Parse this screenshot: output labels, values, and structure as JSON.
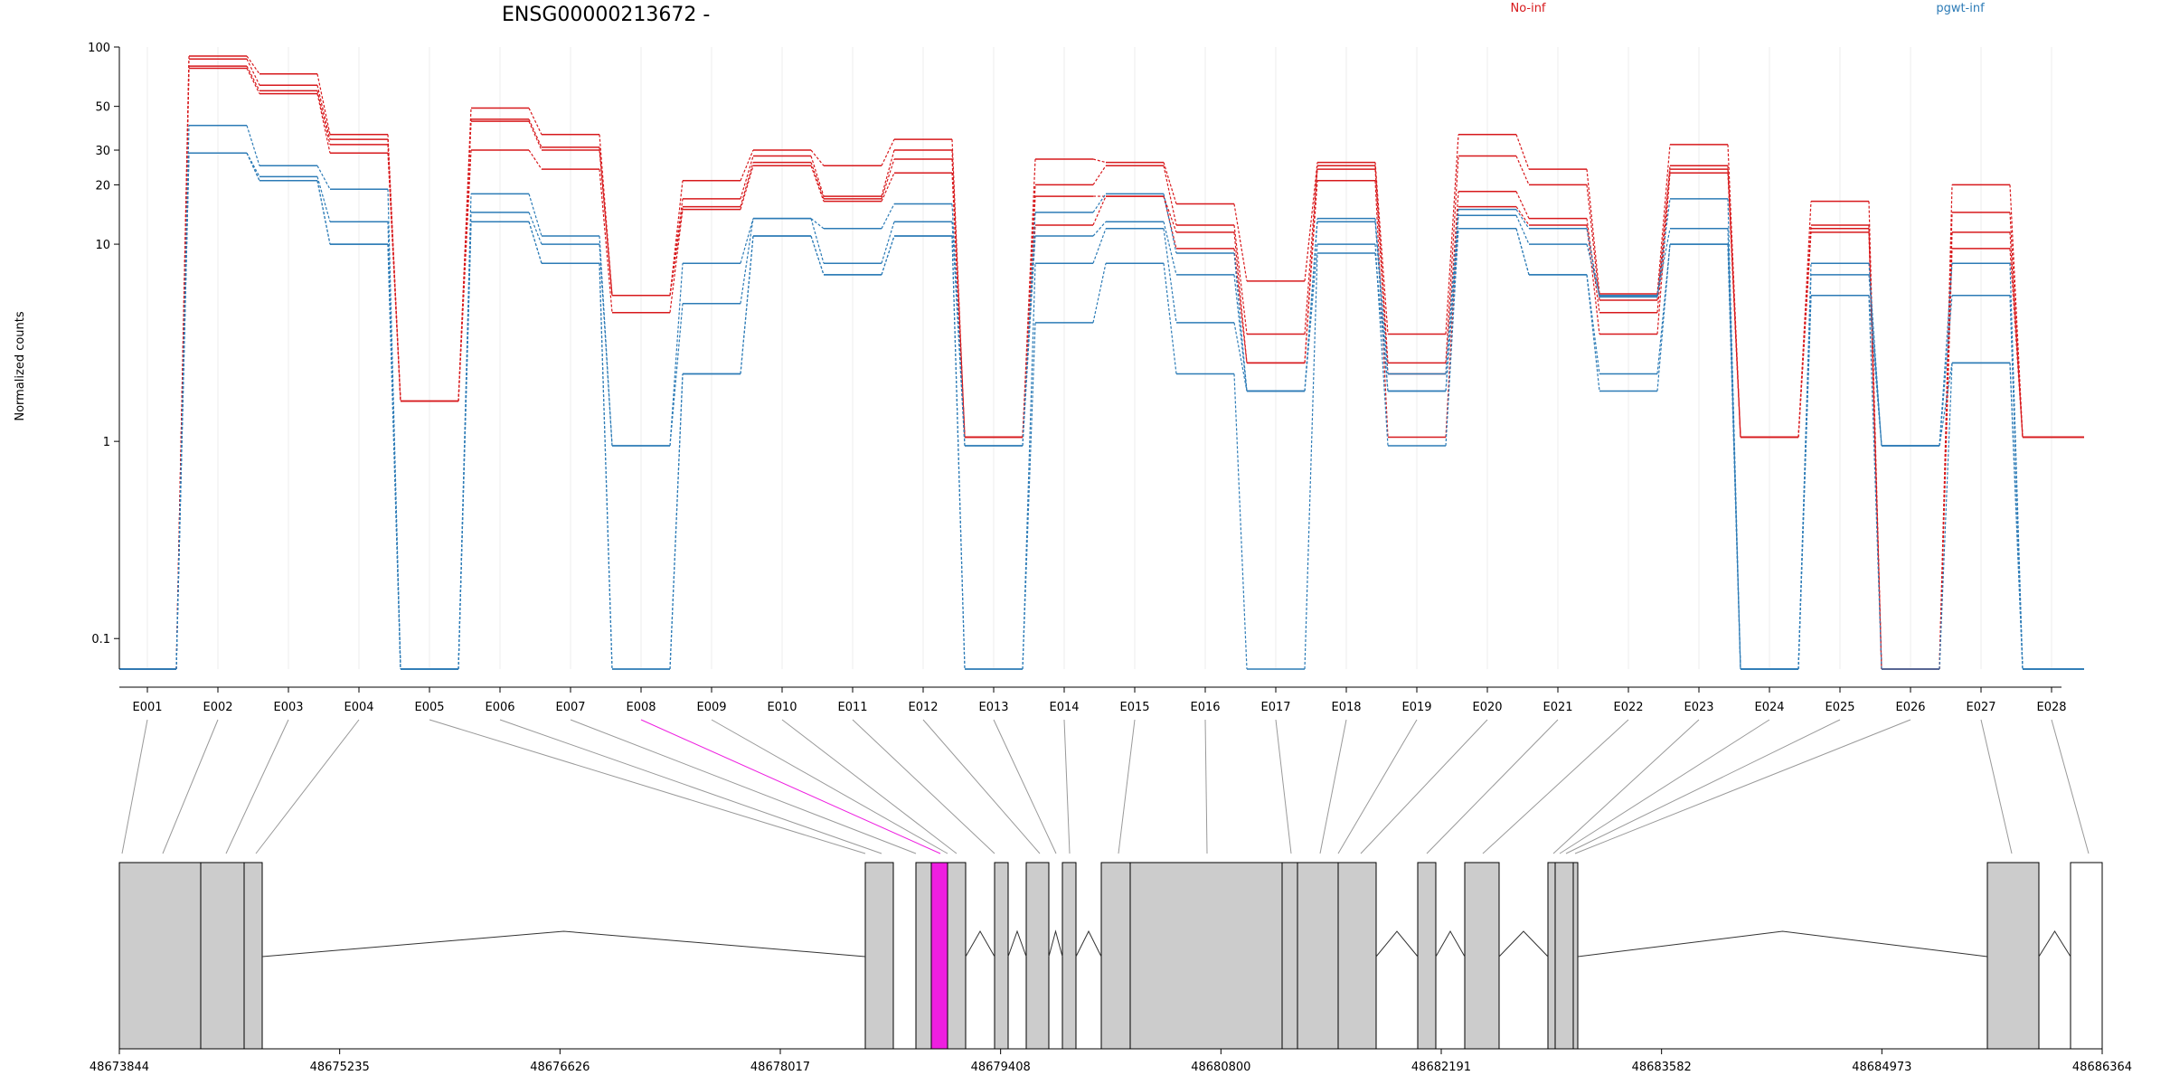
{
  "chart_data": {
    "type": "line",
    "title": "ENSG00000213672 -",
    "ylabel": "Normalized counts",
    "yscale": "log",
    "ylim": [
      0.07,
      100
    ],
    "y_ticks": [
      0.1,
      1,
      10,
      20,
      30,
      50,
      100
    ],
    "y_tick_labels": [
      "0.1",
      "1",
      "10",
      "20",
      "30",
      "50",
      "100"
    ],
    "categories": [
      "E001",
      "E002",
      "E003",
      "E004",
      "E005",
      "E006",
      "E007",
      "E008",
      "E009",
      "E010",
      "E011",
      "E012",
      "E013",
      "E014",
      "E015",
      "E016",
      "E017",
      "E018",
      "E019",
      "E020",
      "E021",
      "E022",
      "E023",
      "E024",
      "E025",
      "E026",
      "E027",
      "E028"
    ],
    "legend": [
      {
        "label": "No-inf",
        "color": "#d7191c"
      },
      {
        "label": "pgwt-inf",
        "color": "#2c7bb6"
      }
    ],
    "series": [
      {
        "group": "No-inf",
        "values": [
          0.07,
          90,
          73,
          36,
          1.6,
          49,
          36,
          5.5,
          21,
          30,
          25,
          34,
          1.05,
          27,
          26,
          16,
          6.5,
          26,
          3.5,
          36,
          24,
          5.6,
          32,
          1.05,
          16.5,
          0.07,
          20,
          1.05
        ]
      },
      {
        "group": "No-inf",
        "values": [
          0.07,
          87,
          64,
          34,
          1.6,
          43,
          31,
          5.5,
          17,
          28,
          17.5,
          30,
          1.05,
          20,
          25,
          12.5,
          3.5,
          25,
          2.5,
          28,
          20,
          5.2,
          25,
          1.05,
          12.5,
          0.07,
          14.5,
          1.05
        ]
      },
      {
        "group": "No-inf",
        "values": [
          0.07,
          80,
          60,
          32,
          1.6,
          42,
          30,
          5.5,
          15.5,
          26,
          17,
          27,
          1.05,
          17.5,
          17.5,
          11.5,
          2.5,
          24,
          2.2,
          18.5,
          13.5,
          4.5,
          24,
          1.05,
          12,
          0.07,
          11.5,
          1.05
        ]
      },
      {
        "group": "No-inf",
        "values": [
          0.07,
          78,
          58,
          29,
          1.6,
          30,
          24,
          4.5,
          15,
          25,
          16.5,
          23,
          1.05,
          12.5,
          17.5,
          9.5,
          2.5,
          21,
          1.05,
          15.5,
          12.5,
          3.5,
          23,
          1.05,
          11.5,
          0.07,
          9.5,
          1.05
        ]
      },
      {
        "group": "pgwt-inf",
        "values": [
          0.07,
          40,
          25,
          19,
          0.07,
          18,
          11,
          0.95,
          8,
          13.5,
          12,
          16,
          0.95,
          14.5,
          18,
          9,
          1.8,
          13.5,
          2.2,
          15,
          12,
          5.4,
          17,
          0.07,
          8,
          0.95,
          8,
          0.07
        ]
      },
      {
        "group": "pgwt-inf",
        "values": [
          0.07,
          29,
          22,
          13,
          0.07,
          14.5,
          10,
          0.95,
          5,
          13.5,
          8,
          13,
          0.95,
          11,
          13,
          7,
          1.8,
          13,
          1.8,
          14,
          10,
          5.5,
          12,
          0.07,
          7,
          0.95,
          5.5,
          0.07
        ]
      },
      {
        "group": "pgwt-inf",
        "values": [
          0.07,
          29,
          21,
          10,
          0.07,
          13,
          8,
          0.07,
          2.2,
          11,
          7,
          11,
          0.07,
          8,
          12,
          4,
          1.8,
          10,
          0.95,
          12,
          7,
          2.2,
          10,
          0.07,
          5.5,
          0.95,
          2.5,
          0.07
        ]
      },
      {
        "group": "pgwt-inf",
        "values": [
          0.07,
          29,
          21,
          10,
          0.07,
          13,
          8,
          0.07,
          2.2,
          11,
          7,
          11,
          0.07,
          4,
          8,
          2.2,
          0.07,
          9,
          1.8,
          12,
          7,
          1.8,
          10,
          0.07,
          5.5,
          0.07,
          2.5,
          0.07
        ]
      }
    ],
    "gene_model": {
      "genomic_ticks": [
        "48673844",
        "48675235",
        "48676626",
        "48678017",
        "48679408",
        "48680800",
        "48682191",
        "48683582",
        "48684973",
        "48686364"
      ],
      "highlighted_exon": "E008"
    }
  }
}
